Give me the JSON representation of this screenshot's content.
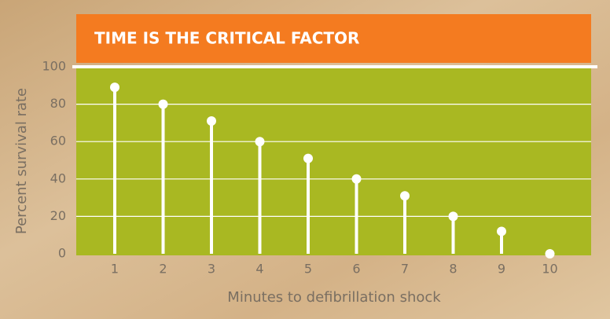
{
  "chart_data": {
    "type": "stem",
    "title": "TIME IS THE CRITICAL FACTOR",
    "x_label": "Minutes to defibrillation shock",
    "y_label": "Percent survival rate",
    "categories": [
      "1",
      "2",
      "3",
      "4",
      "5",
      "6",
      "7",
      "8",
      "9",
      "10"
    ],
    "values": [
      89,
      80,
      71,
      60,
      51,
      40,
      31,
      20,
      12,
      0
    ],
    "color": "#ffffff",
    "plot_color": "#a9b822",
    "header_color": "#f47b20",
    "ylim": [
      0,
      100
    ],
    "yticks": [
      0,
      20,
      40,
      60,
      80,
      100
    ],
    "grid": true
  }
}
